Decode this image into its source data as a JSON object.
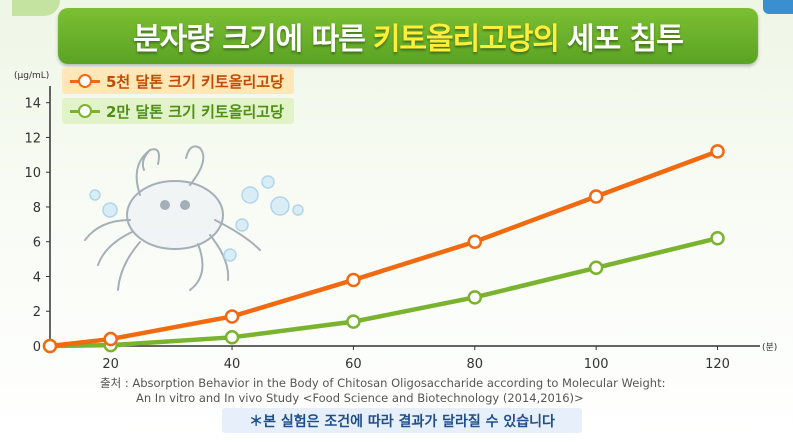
{
  "title": {
    "part1": "분자량 크기에 따른",
    "part2": "키토올리고당의",
    "part3": "세포 침투"
  },
  "legend": {
    "series1": "5천 달톤 크기 키토올리고당",
    "series2": "2만 달톤 크기 키토올리고당"
  },
  "colors": {
    "series1": "#f26a0f",
    "series2": "#7ab32e",
    "title_bg": "#6ab12a",
    "title_accent": "#ffef3a"
  },
  "icons": {
    "crab": "crab-illustration",
    "bubbles": "bubble-decoration"
  },
  "chart_data": {
    "type": "line",
    "ylabel": "(μg/mL)",
    "xlabel": "(분)",
    "x": [
      10,
      20,
      40,
      60,
      80,
      100,
      120
    ],
    "xticks": [
      20,
      40,
      60,
      80,
      100,
      120
    ],
    "yticks": [
      0,
      2,
      4,
      6,
      8,
      10,
      12,
      14
    ],
    "xlim": [
      10,
      127
    ],
    "ylim": [
      0,
      14.5
    ],
    "grid": false,
    "legend_position": "top-left",
    "series": [
      {
        "name": "5천 달톤 크기 키토올리고당",
        "values": [
          0,
          0.4,
          1.7,
          3.8,
          6.0,
          8.6,
          11.2
        ]
      },
      {
        "name": "2만 달톤 크기 키토올리고당",
        "values": [
          0,
          0.05,
          0.5,
          1.4,
          2.8,
          4.5,
          6.2
        ]
      }
    ]
  },
  "source": {
    "line1": "출처 : Absorption Behavior in the Body of Chitosan Oligosaccharide according to Molecular Weight:",
    "line2": "An In vitro and In vivo Study <Food Science and Biotechnology (2014,2016)>"
  },
  "note": "＊본 실험은 조건에 따라 결과가 달라질 수 있습니다"
}
